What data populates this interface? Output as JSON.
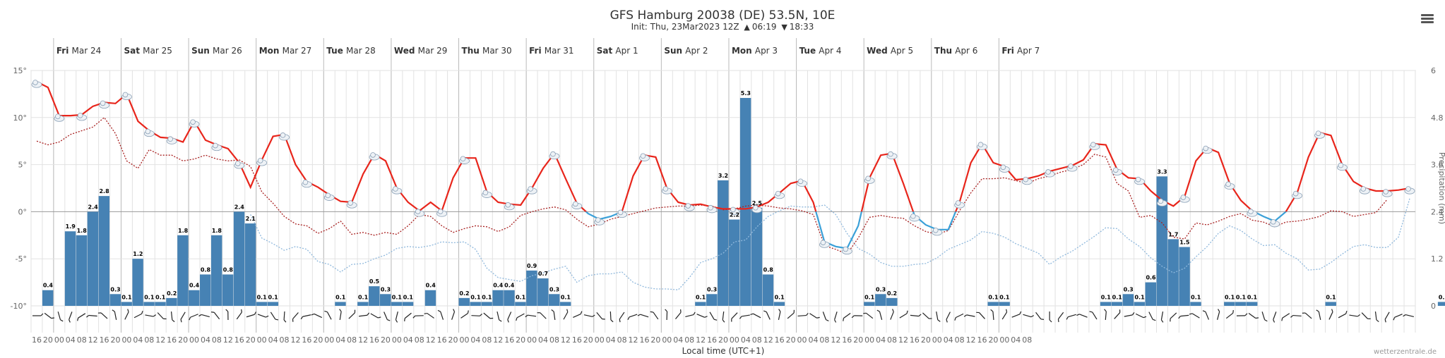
{
  "header": {
    "title": "GFS Hamburg 20038 (DE) 53.5N, 10E",
    "init": "Init: Thu, 23Mar2023 12Z",
    "sunrise": "06:19",
    "sunset": "18:33",
    "credit": "wetterzentrale.de"
  },
  "colors": {
    "temp_line": "#e8251b",
    "temp_line_cold": "#3aa0d8",
    "dewpoint": "#a82020",
    "cold_dotted": "#8fb8dc",
    "bar": "#4682b4",
    "grid": "#e2e2e2",
    "axis_text": "#666666"
  },
  "chart_data": {
    "type": "meteogram",
    "title": "GFS Hamburg 20038 (DE) 53.5N, 10E",
    "xlabel": "Local time (UTC+1)",
    "ylabel_right": "Precipitation (mm)",
    "time_step_hours": 4,
    "time_start": "Thu Mar 23 16:00",
    "temp_ylim": [
      -10,
      15
    ],
    "temp_ticks": [
      "15°",
      "10°",
      "5°",
      "0°",
      "-5°",
      "-10°"
    ],
    "precip_ylim": [
      0,
      6
    ],
    "precip_ticks": [
      "0",
      "1.2",
      "2.4",
      "3.6",
      "4.8",
      "6"
    ],
    "days": [
      {
        "label": "Fri",
        "date": "Mar 24"
      },
      {
        "label": "Sat",
        "date": "Mar 25"
      },
      {
        "label": "Sun",
        "date": "Mar 26"
      },
      {
        "label": "Mon",
        "date": "Mar 27"
      },
      {
        "label": "Tue",
        "date": "Mar 28"
      },
      {
        "label": "Wed",
        "date": "Mar 29"
      },
      {
        "label": "Thu",
        "date": "Mar 30"
      },
      {
        "label": "Fri",
        "date": "Mar 31"
      },
      {
        "label": "Sat",
        "date": "Apr 1"
      },
      {
        "label": "Sun",
        "date": "Apr 2"
      },
      {
        "label": "Mon",
        "date": "Apr 3"
      },
      {
        "label": "Tue",
        "date": "Apr 4"
      },
      {
        "label": "Wed",
        "date": "Apr 5"
      },
      {
        "label": "Thu",
        "date": "Apr 6"
      },
      {
        "label": "Fri",
        "date": "Apr 7"
      }
    ],
    "hour_labels": [
      "16",
      "20",
      "00",
      "04",
      "08",
      "12",
      "16",
      "20",
      "00",
      "04",
      "08",
      "12",
      "16",
      "20",
      "00",
      "04",
      "08",
      "12",
      "16",
      "20",
      "00",
      "04",
      "08",
      "12",
      "16",
      "20",
      "00",
      "04",
      "08",
      "12",
      "16",
      "20",
      "00",
      "04",
      "08",
      "12",
      "16",
      "20",
      "00",
      "04",
      "08",
      "12",
      "16",
      "20",
      "00",
      "04",
      "08",
      "12",
      "16",
      "20",
      "00",
      "04",
      "08",
      "12",
      "16",
      "20",
      "00",
      "04",
      "08",
      "12",
      "16",
      "20",
      "00",
      "04",
      "08",
      "12",
      "16",
      "20",
      "00",
      "04",
      "08",
      "12",
      "16",
      "20",
      "00",
      "04",
      "08",
      "12",
      "16",
      "20",
      "00",
      "04",
      "08",
      "12",
      "16",
      "20",
      "00",
      "04",
      "08"
    ],
    "temperature": [
      13.8,
      13.2,
      10.2,
      10.2,
      10.3,
      11.2,
      11.6,
      11.5,
      12.5,
      9.6,
      8.6,
      7.9,
      7.8,
      7.4,
      9.6,
      7.6,
      7.1,
      6.7,
      5.2,
      2.6,
      5.5,
      8.0,
      8.2,
      5.0,
      3.2,
      2.6,
      1.8,
      1.1,
      1.0,
      4.0,
      6.1,
      5.4,
      2.5,
      1.0,
      0.1,
      1.0,
      0.1,
      3.6,
      5.7,
      5.7,
      2.1,
      1.0,
      0.8,
      0.7,
      2.5,
      4.6,
      6.2,
      3.5,
      0.9,
      -0.2,
      -0.8,
      -0.5,
      0.0,
      3.8,
      6.0,
      5.8,
      2.5,
      1.0,
      0.7,
      0.8,
      0.5,
      0.3,
      0.3,
      0.3,
      0.5,
      1.0,
      2.0,
      3.0,
      3.3,
      1.0,
      -3.2,
      -3.7,
      -3.9,
      -1.5,
      3.6,
      6.0,
      6.2,
      3.0,
      -0.4,
      -1.4,
      -1.9,
      -1.9,
      1.0,
      5.2,
      7.2,
      5.2,
      4.8,
      3.4,
      3.5,
      3.8,
      4.3,
      4.6,
      4.9,
      5.5,
      7.2,
      7.1,
      4.5,
      3.6,
      3.5,
      2.2,
      1.2,
      0.6,
      1.6,
      5.4,
      6.8,
      6.3,
      3.0,
      1.2,
      0.1,
      -0.5,
      -1.0,
      0.0,
      2.0,
      5.8,
      8.4,
      8.1,
      5.0,
      3.2,
      2.5,
      2.2,
      2.2,
      2.3,
      2.5
    ],
    "dewpoint": [
      7.5,
      7.1,
      7.4,
      8.2,
      8.6,
      9.0,
      10.0,
      8.3,
      5.4,
      4.6,
      6.6,
      6.0,
      6.0,
      5.4,
      5.6,
      6.0,
      5.6,
      5.4,
      5.5,
      4.8,
      2.1,
      0.9,
      -0.5,
      -1.3,
      -1.5,
      -2.3,
      -1.8,
      -1.0,
      -2.4,
      -2.2,
      -2.5,
      -2.2,
      -2.4,
      -1.5,
      -0.3,
      -0.5,
      -1.5,
      -2.2,
      -1.8,
      -1.5,
      -1.6,
      -2.1,
      -1.6,
      -0.4,
      0.0,
      0.3,
      0.5,
      0.2,
      -0.8,
      -1.6,
      -1.3,
      -0.8,
      -0.5,
      -0.2,
      0.1,
      0.4,
      0.5,
      0.6,
      0.6,
      0.7,
      0.6,
      0.2,
      0.3,
      0.6,
      0.7,
      0.6,
      0.4,
      0.3,
      0.1,
      -0.3,
      -3.6,
      -4.0,
      -4.5,
      -2.8,
      -0.6,
      -0.4,
      -0.6,
      -0.7,
      -1.5,
      -2.1,
      -2.4,
      -2.0,
      0.1,
      2.0,
      3.5,
      3.5,
      3.6,
      3.3,
      3.0,
      3.5,
      3.8,
      4.2,
      4.5,
      5.0,
      6.1,
      5.8,
      3.0,
      2.2,
      -0.6,
      -0.4,
      -1.2,
      -2.7,
      -2.9,
      -1.2,
      -1.4,
      -1.0,
      -0.5,
      -0.2,
      -0.9,
      -1.1,
      -1.6,
      -1.1,
      -1.0,
      -0.8,
      -0.5,
      0.1,
      0.0,
      -0.5,
      -0.3,
      -0.1,
      1.3
    ],
    "t850": [
      null,
      null,
      null,
      null,
      null,
      null,
      null,
      null,
      null,
      null,
      null,
      null,
      null,
      null,
      null,
      null,
      null,
      null,
      null,
      -0.3,
      -2.8,
      -3.4,
      -4.1,
      -3.7,
      -4.0,
      -5.3,
      -5.6,
      -6.4,
      -5.6,
      -5.5,
      -5.0,
      -4.6,
      -3.9,
      -3.7,
      -3.8,
      -3.6,
      -3.2,
      -3.3,
      -3.2,
      -4.0,
      -6.0,
      -7.0,
      -7.2,
      -7.4,
      -6.8,
      -6.5,
      -6.1,
      -5.8,
      -7.5,
      -6.8,
      -6.6,
      -6.6,
      -6.4,
      -7.5,
      -8.0,
      -8.2,
      -8.2,
      -8.3,
      -7.0,
      -5.4,
      -5.0,
      -4.4,
      -3.2,
      -3.0,
      -1.6,
      -0.5,
      0.1,
      0.6,
      0.5,
      0.5,
      0.7,
      -0.3,
      -2.3,
      -3.9,
      -4.5,
      -5.4,
      -5.8,
      -5.8,
      -5.6,
      -5.5,
      -4.9,
      -4.0,
      -3.5,
      -3.0,
      -2.1,
      -2.3,
      -2.7,
      -3.4,
      -3.9,
      -4.4,
      -5.6,
      -4.8,
      -4.2,
      -3.4,
      -2.6,
      -1.7,
      -1.8,
      -2.9,
      -3.7,
      -4.9,
      -5.8,
      -6.5,
      -6.0,
      -4.8,
      -3.7,
      -2.3,
      -1.5,
      -2.0,
      -2.9,
      -3.6,
      -3.5,
      -4.4,
      -5.0,
      -6.2,
      -6.1,
      -5.4,
      -4.5,
      -3.7,
      -3.5,
      -3.8,
      -3.8,
      -2.7,
      1.4
    ],
    "precipitation": [
      null,
      0.4,
      null,
      1.9,
      1.8,
      2.4,
      2.8,
      0.3,
      0.1,
      1.2,
      0.1,
      0.1,
      0.2,
      1.8,
      0.4,
      0.8,
      1.8,
      0.8,
      2.4,
      2.1,
      0.1,
      0.1,
      null,
      null,
      null,
      null,
      null,
      0.1,
      null,
      0.1,
      0.5,
      0.3,
      0.1,
      0.1,
      null,
      0.4,
      null,
      null,
      0.2,
      0.1,
      0.1,
      0.4,
      0.4,
      0.1,
      0.9,
      0.7,
      0.3,
      0.1,
      null,
      null,
      null,
      null,
      null,
      null,
      null,
      null,
      null,
      null,
      null,
      0.1,
      0.3,
      3.2,
      2.2,
      5.3,
      2.5,
      0.8,
      0.1,
      null,
      null,
      null,
      null,
      null,
      null,
      null,
      0.1,
      0.3,
      0.2,
      null,
      null,
      null,
      null,
      null,
      null,
      null,
      null,
      0.1,
      0.1,
      null,
      null,
      null,
      null,
      null,
      null,
      null,
      null,
      0.1,
      0.1,
      0.3,
      0.1,
      0.6,
      3.3,
      1.7,
      1.5,
      0.1,
      null,
      null,
      0.1,
      0.1,
      0.1,
      null,
      null,
      null,
      null,
      null,
      null,
      0.1,
      null,
      null,
      null,
      null,
      null,
      null,
      null,
      null,
      null,
      0.1
    ]
  }
}
